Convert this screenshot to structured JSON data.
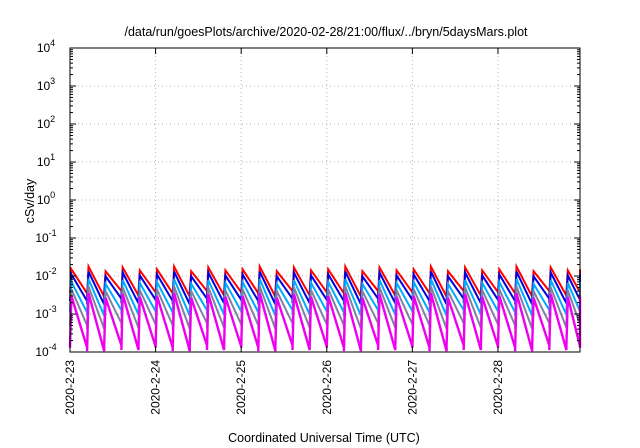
{
  "colors": {
    "background": "#ffffff",
    "grid": "#b3b3b3",
    "axis": "#000000"
  },
  "chart_data": {
    "type": "line",
    "title": "/data/run/goesPlots/archive/2020-02-28/21:00/flux/../bryn/5daysMars.plot",
    "xlabel": "Coordinated Universal Time (UTC)",
    "ylabel": "cSv/day",
    "yscale": "log",
    "ylim": [
      0.0001,
      10000
    ],
    "xlim": [
      "2020-02-23T00:00",
      "2020-02-28T23:00"
    ],
    "grid": true,
    "legend": "none",
    "y_ticks": [
      {
        "value": 0.0001,
        "base": "10",
        "exp": "-4"
      },
      {
        "value": 0.001,
        "base": "10",
        "exp": "-3"
      },
      {
        "value": 0.01,
        "base": "10",
        "exp": "-2"
      },
      {
        "value": 0.1,
        "base": "10",
        "exp": "-1"
      },
      {
        "value": 1,
        "base": "10",
        "exp": "0"
      },
      {
        "value": 10,
        "base": "10",
        "exp": "1"
      },
      {
        "value": 100,
        "base": "10",
        "exp": "2"
      },
      {
        "value": 1000,
        "base": "10",
        "exp": "3"
      },
      {
        "value": 10000,
        "base": "10",
        "exp": "4"
      }
    ],
    "x_ticks": [
      {
        "value": "2020-02-23T00:00",
        "label": "2020-2-23"
      },
      {
        "value": "2020-02-24T00:00",
        "label": "2020-2-24"
      },
      {
        "value": "2020-02-25T00:00",
        "label": "2020-2-25"
      },
      {
        "value": "2020-02-26T00:00",
        "label": "2020-2-26"
      },
      {
        "value": "2020-02-27T00:00",
        "label": "2020-2-27"
      },
      {
        "value": "2020-02-28T00:00",
        "label": "2020-2-28"
      }
    ],
    "pattern": {
      "description": "sawtooth: sharp rise then exponential decay, repeating",
      "start": "2020-02-23T00:00",
      "period_hours": 4.8,
      "jitter": [
        0,
        0.3,
        -0.2,
        0.2,
        -0.1
      ]
    },
    "series": [
      {
        "color": "#ff0000",
        "peak": 0.015,
        "trough": 0.0035
      },
      {
        "color": "#0000dd",
        "peak": 0.011,
        "trough": 0.0022
      },
      {
        "color": "#00aaff",
        "peak": 0.007,
        "trough": 0.0011
      },
      {
        "color": "#8080a0",
        "peak": 0.0045,
        "trough": 0.0005
      },
      {
        "color": "#ee00ee",
        "peak": 0.003,
        "trough": 0.00013
      }
    ]
  }
}
